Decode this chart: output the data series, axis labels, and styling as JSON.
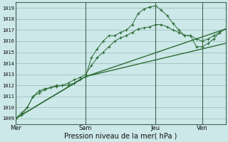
{
  "bg_color": "#cce8e8",
  "grid_color": "#99bbbb",
  "line_color": "#2d6b35",
  "marker_color": "#2d6b35",
  "yticks": [
    1009,
    1010,
    1011,
    1012,
    1013,
    1014,
    1015,
    1016,
    1017,
    1018,
    1019
  ],
  "xlabel": "Pression niveau de la mer( hPa )",
  "day_labels": [
    "Mer",
    "Sam",
    "Jeu",
    "Ven"
  ],
  "day_positions": [
    0,
    48,
    96,
    128
  ],
  "xlim": [
    0,
    144
  ],
  "ylim_min": 1008.5,
  "ylim_max": 1019.5,
  "series1_x": [
    0,
    4,
    8,
    12,
    16,
    20,
    24,
    28,
    32,
    36,
    40,
    44,
    48,
    52,
    56,
    60,
    64,
    68,
    72,
    76,
    80,
    84,
    88,
    92,
    96,
    100,
    104,
    108,
    112,
    116,
    120,
    124,
    128,
    132,
    136,
    140,
    144
  ],
  "series1_y": [
    1009.0,
    1009.5,
    1010.0,
    1011.0,
    1011.5,
    1011.7,
    1011.8,
    1011.9,
    1012.0,
    1012.0,
    1012.2,
    1012.5,
    1012.8,
    1014.5,
    1015.3,
    1016.0,
    1016.5,
    1016.5,
    1016.8,
    1017.0,
    1017.5,
    1018.5,
    1018.9,
    1019.1,
    1019.2,
    1018.8,
    1018.3,
    1017.6,
    1017.0,
    1016.5,
    1016.5,
    1015.5,
    1015.5,
    1015.8,
    1016.2,
    1016.8,
    1017.1
  ],
  "series2_x": [
    0,
    4,
    8,
    12,
    16,
    20,
    24,
    28,
    32,
    36,
    40,
    44,
    48,
    52,
    56,
    60,
    64,
    68,
    72,
    76,
    80,
    84,
    88,
    92,
    96,
    100,
    104,
    108,
    112,
    116,
    120,
    124,
    128,
    132,
    136,
    140,
    144
  ],
  "series2_y": [
    1009.0,
    1009.3,
    1010.0,
    1011.0,
    1011.3,
    1011.6,
    1011.8,
    1012.0,
    1012.0,
    1012.2,
    1012.5,
    1012.7,
    1013.0,
    1013.8,
    1014.5,
    1015.0,
    1015.5,
    1016.0,
    1016.3,
    1016.5,
    1016.8,
    1017.1,
    1017.2,
    1017.3,
    1017.5,
    1017.5,
    1017.3,
    1017.0,
    1016.8,
    1016.5,
    1016.5,
    1016.2,
    1016.0,
    1016.2,
    1016.5,
    1016.8,
    1017.1
  ],
  "series3_x": [
    0,
    48,
    144
  ],
  "series3_y": [
    1009.0,
    1012.8,
    1017.1
  ],
  "series4_x": [
    0,
    48,
    144
  ],
  "series4_y": [
    1009.0,
    1012.8,
    1015.8
  ]
}
